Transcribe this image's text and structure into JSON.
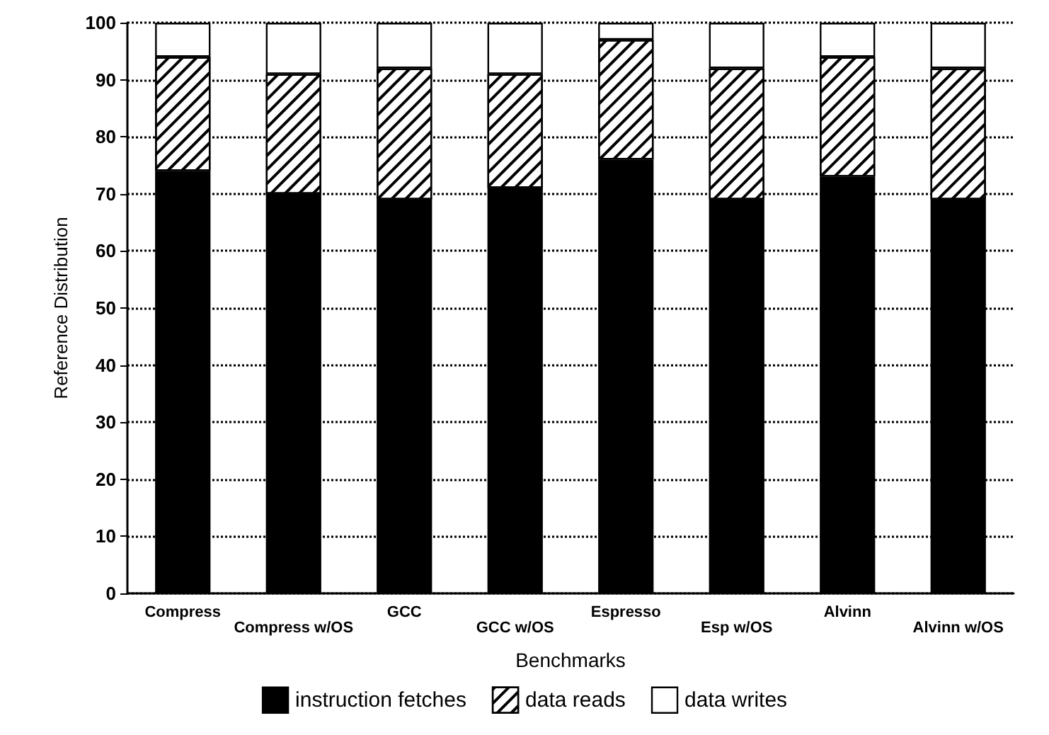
{
  "chart_data": {
    "type": "bar",
    "stacked": true,
    "xlabel": "Benchmarks",
    "ylabel": "Reference Distribution",
    "categories": [
      "Compress",
      "Compress w/OS",
      "GCC",
      "GCC w/OS",
      "Espresso",
      "Esp w/OS",
      "Alvinn",
      "Alvinn w/OS"
    ],
    "series": [
      {
        "name": "instruction fetches",
        "color": "#000000",
        "values": [
          74,
          70,
          69,
          71,
          76,
          69,
          73,
          69
        ]
      },
      {
        "name": "data reads",
        "color": "#ffffff",
        "values": [
          20,
          21,
          23,
          20,
          21,
          23,
          21,
          23
        ]
      },
      {
        "name": "data writes",
        "color": "#ffffff",
        "values": [
          6,
          9,
          8,
          9,
          3,
          8,
          6,
          8
        ]
      }
    ],
    "ylim": [
      0,
      100
    ],
    "yticks": [
      0,
      10,
      20,
      30,
      40,
      50,
      60,
      70,
      80,
      90,
      100
    ],
    "grid": "y",
    "legend": "bottom"
  }
}
